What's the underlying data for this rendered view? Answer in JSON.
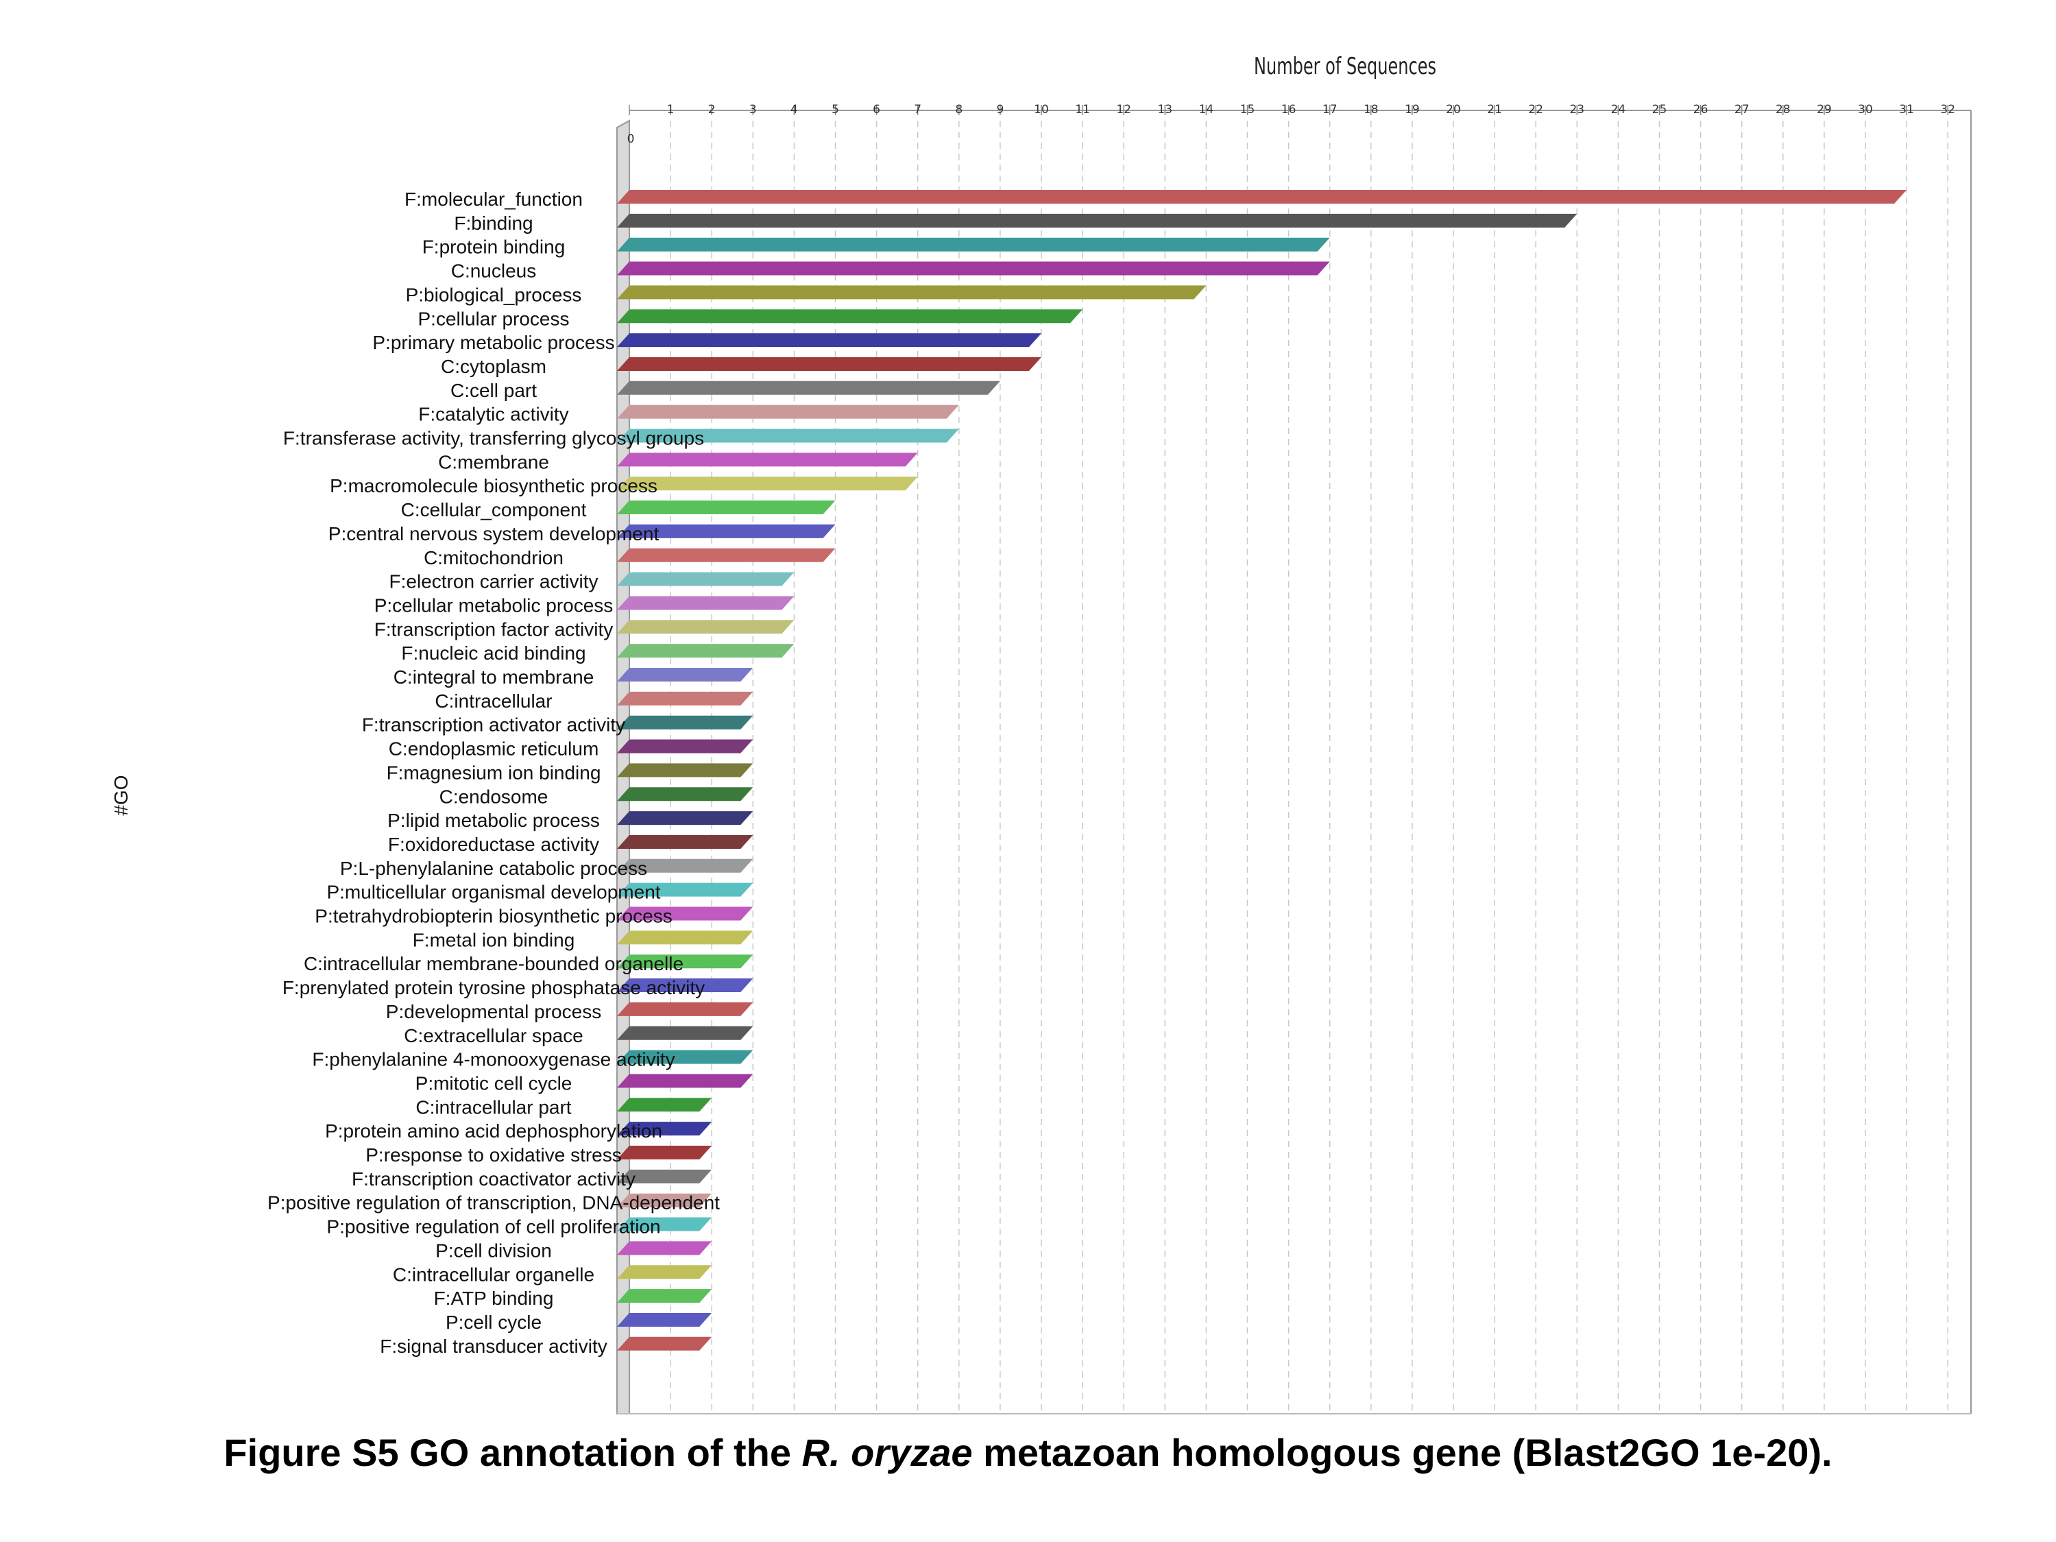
{
  "chart_data": {
    "type": "bar",
    "orientation": "horizontal",
    "xlabel": "Number of Sequences",
    "ylabel": "#GO",
    "xlim": [
      0,
      32
    ],
    "x_ticks": [
      0,
      1,
      2,
      3,
      4,
      5,
      6,
      7,
      8,
      9,
      10,
      11,
      12,
      13,
      14,
      15,
      16,
      17,
      18,
      19,
      20,
      21,
      22,
      23,
      24,
      25,
      26,
      27,
      28,
      29,
      30,
      31,
      32
    ],
    "grid": true,
    "categories": [
      "F:molecular_function",
      "F:binding",
      "F:protein binding",
      "C:nucleus",
      "P:biological_process",
      "P:cellular process",
      "P:primary metabolic process",
      "C:cytoplasm",
      "C:cell part",
      "F:catalytic activity",
      "F:transferase activity, transferring glycosyl groups",
      "C:membrane",
      "P:macromolecule biosynthetic process",
      "C:cellular_component",
      "P:central nervous system development",
      "C:mitochondrion",
      "F:electron carrier activity",
      "P:cellular metabolic process",
      "F:transcription factor activity",
      "F:nucleic acid binding",
      "C:integral to membrane",
      "C:intracellular",
      "F:transcription activator activity",
      "C:endoplasmic reticulum",
      "F:magnesium ion binding",
      "C:endosome",
      "P:lipid metabolic process",
      "F:oxidoreductase activity",
      "P:L-phenylalanine catabolic process",
      "P:multicellular organismal development",
      "P:tetrahydrobiopterin biosynthetic process",
      "F:metal ion binding",
      "C:intracellular membrane-bounded organelle",
      "F:prenylated protein tyrosine phosphatase activity",
      "P:developmental process",
      "C:extracellular space",
      "F:phenylalanine 4-monooxygenase activity",
      "P:mitotic cell cycle",
      "C:intracellular part",
      "P:protein amino acid dephosphorylation",
      "P:response to oxidative stress",
      "F:transcription coactivator activity",
      "P:positive regulation of transcription, DNA-dependent",
      "P:positive regulation of cell proliferation",
      "P:cell division",
      "C:intracellular organelle",
      "F:ATP binding",
      "P:cell cycle",
      "F:signal transducer activity"
    ],
    "values": [
      31,
      23,
      17,
      17,
      14,
      11,
      10,
      10,
      9,
      8,
      8,
      7,
      7,
      5,
      5,
      5,
      4,
      4,
      4,
      4,
      3,
      3,
      3,
      3,
      3,
      3,
      3,
      3,
      3,
      3,
      3,
      3,
      3,
      3,
      3,
      3,
      3,
      3,
      2,
      2,
      2,
      2,
      2,
      2,
      2,
      2,
      2,
      2,
      2
    ],
    "colors": [
      "#c05a5a",
      "#555555",
      "#3a9a9a",
      "#a03a9e",
      "#9a9a3a",
      "#3a9a3a",
      "#3a3aa0",
      "#a03a3a",
      "#7a7a7a",
      "#c89a9a",
      "#6ac0c0",
      "#c05ac0",
      "#c8c86a",
      "#5ac05a",
      "#5a5ac0",
      "#c86a6a",
      "#7ac0c0",
      "#c07ac8",
      "#c0c07a",
      "#7ac07a",
      "#7a7ac8",
      "#c87a7a",
      "#3a7a7a",
      "#7a3a7a",
      "#7a7a3a",
      "#3a7a3a",
      "#3a3a7a",
      "#7a3a3a",
      "#9a9a9a",
      "#5ac0c0",
      "#c05ac0",
      "#c0c05a",
      "#5ac05a",
      "#5a5ac0",
      "#c05a5a",
      "#5a5a5a",
      "#3a9a9a",
      "#a03a9e",
      "#3a9a3a",
      "#3a3aa0",
      "#a03a3a",
      "#7a7a7a",
      "#c89a9a",
      "#5ac0c0",
      "#c05ac0",
      "#c0c05a",
      "#5ac05a",
      "#5a5ac0",
      "#c05a5a"
    ]
  },
  "caption": {
    "prefix": "Figure S5 GO annotation of the ",
    "species": "R. oryzae",
    "suffix": " metazoan homologous gene (Blast2GO 1e-20)."
  }
}
